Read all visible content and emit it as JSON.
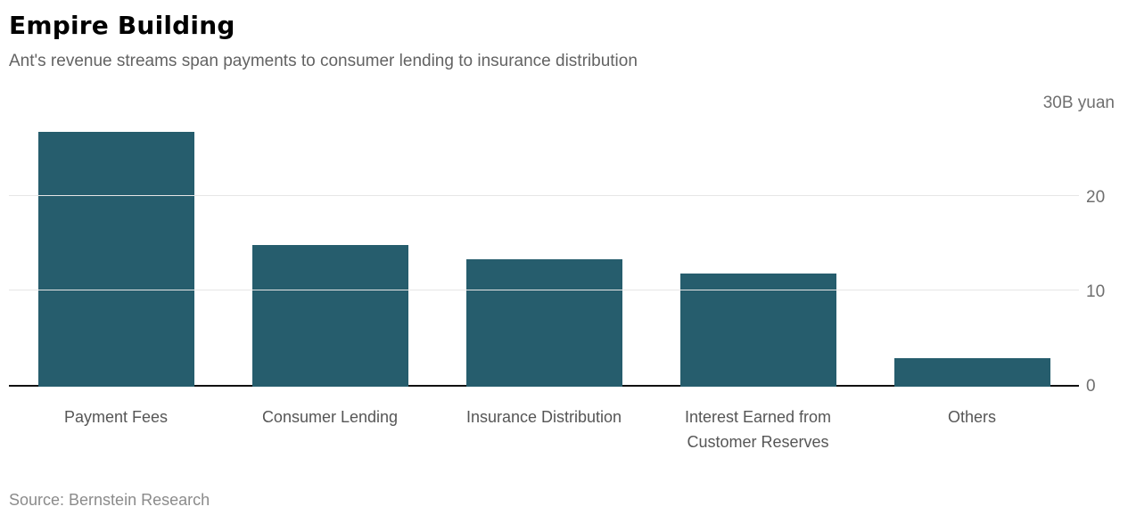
{
  "chart_data": {
    "type": "bar",
    "title": "Empire Building",
    "subtitle": "Ant's revenue streams span payments to consumer lending to insurance distribution",
    "categories": [
      "Payment Fees",
      "Consumer Lending",
      "Insurance Distribution",
      "Interest Earned from Customer Reserves",
      "Others"
    ],
    "values": [
      27,
      15,
      13.5,
      12,
      3
    ],
    "unit_label": "30B yuan",
    "yticks": [
      0,
      10,
      20
    ],
    "ylim": [
      0,
      30
    ],
    "bar_color": "#265d6d",
    "grid": true,
    "axis_side": "right",
    "legend": "none",
    "source": "Source: Bernstein Research"
  }
}
